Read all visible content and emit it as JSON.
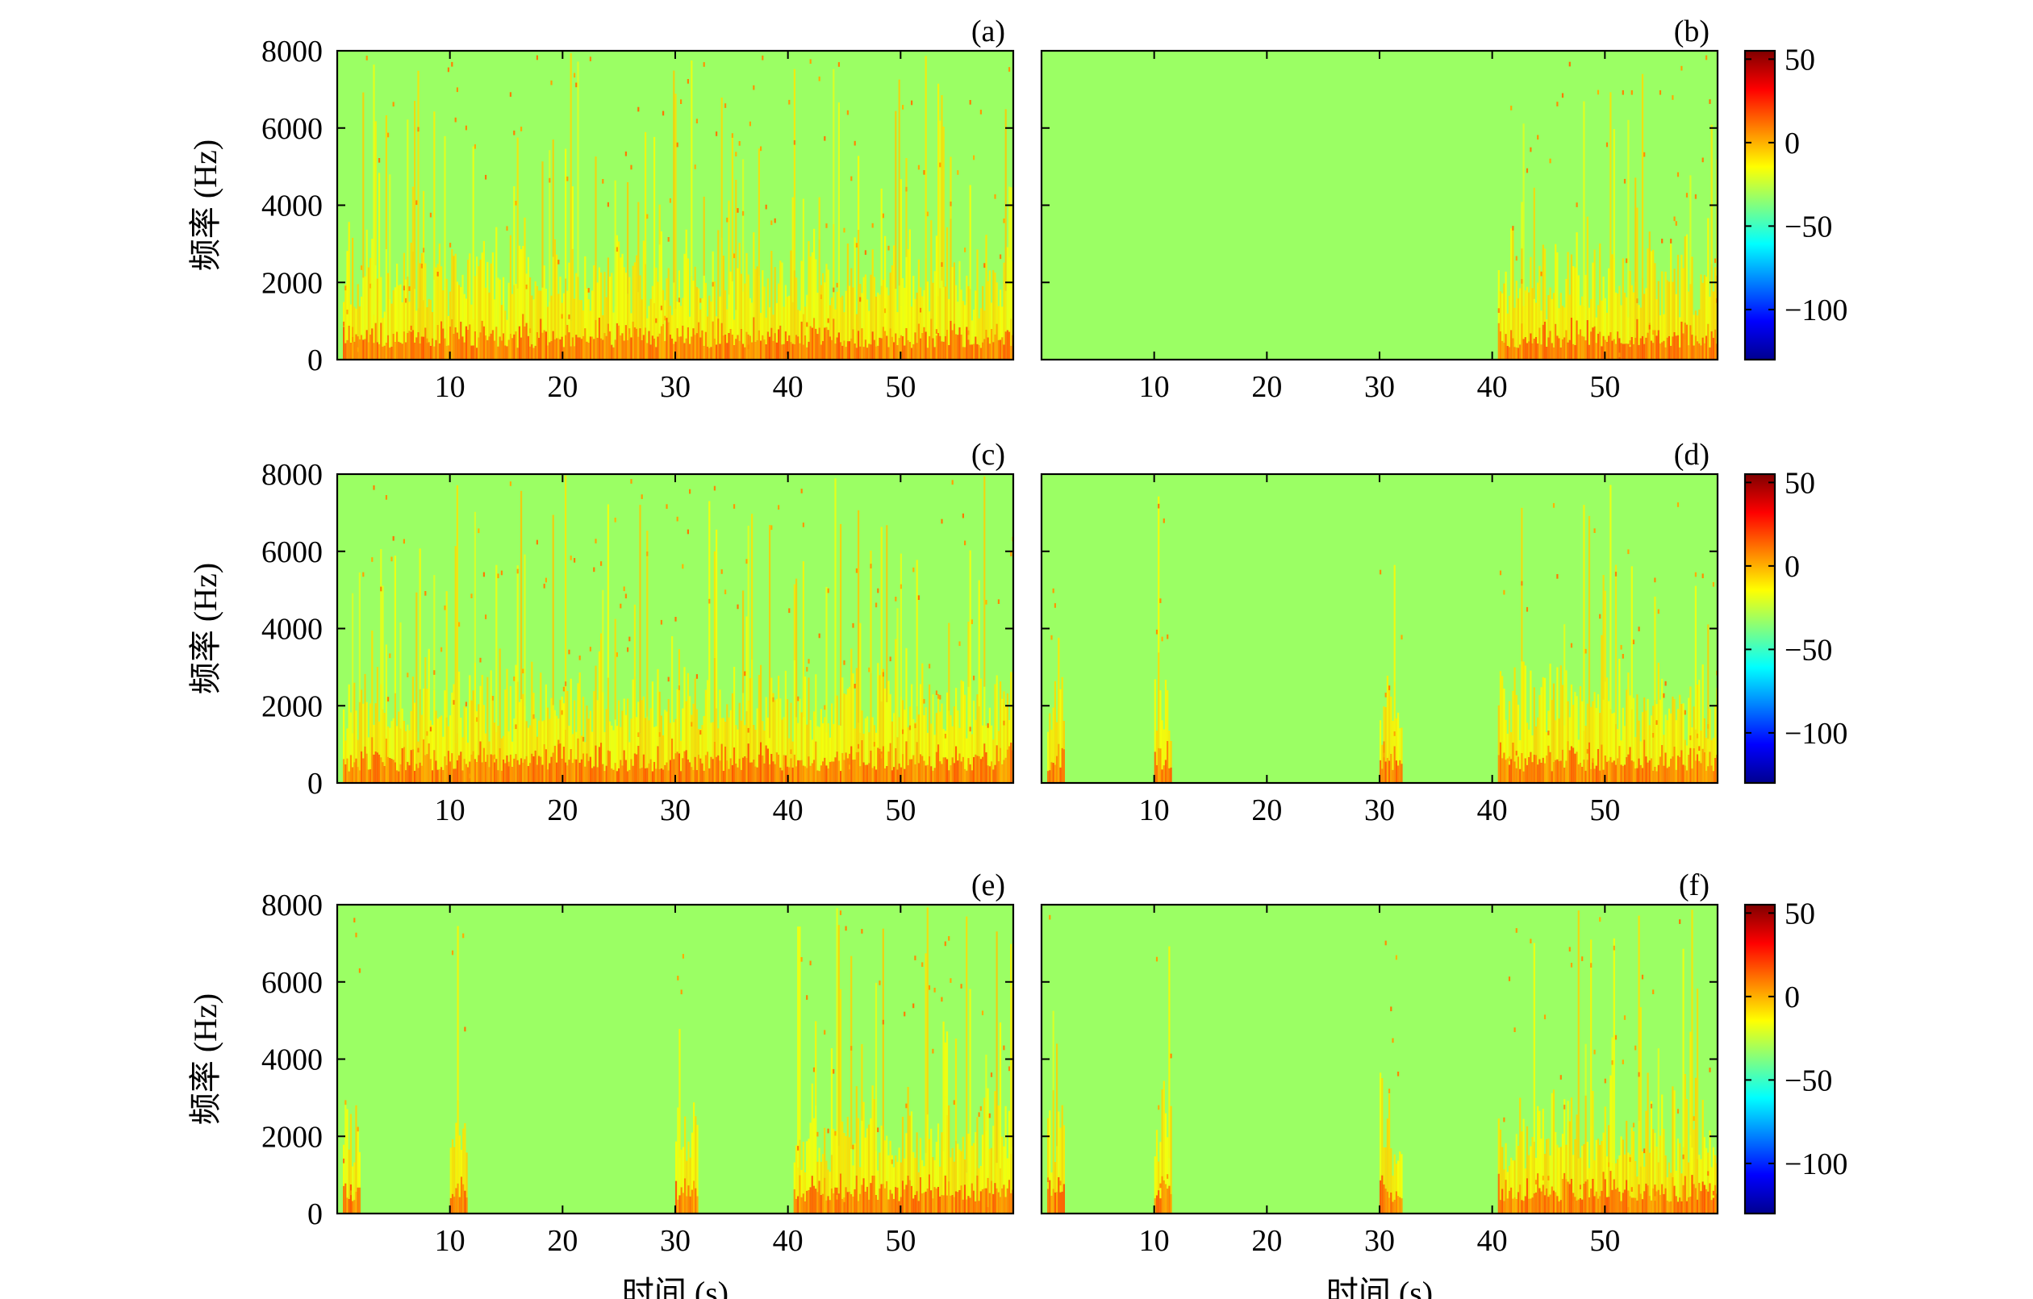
{
  "chart_data": {
    "type": "heatmap",
    "panels": [
      {
        "label": "(a)",
        "ylabel": "频率 (Hz)",
        "xlabel": "",
        "xticks": [
          "10",
          "20",
          "30",
          "40",
          "50"
        ],
        "yticks": [
          "0",
          "2000",
          "4000",
          "6000",
          "8000"
        ],
        "xlim": [
          0,
          60
        ],
        "ylim": [
          0,
          8000
        ],
        "active_intervals_s": [
          [
            0.5,
            60
          ]
        ],
        "quiet_level_db": -45
      },
      {
        "label": "(b)",
        "ylabel": "",
        "xlabel": "",
        "xticks": [
          "10",
          "20",
          "30",
          "40",
          "50"
        ],
        "yticks": [],
        "xlim": [
          0,
          60
        ],
        "ylim": [
          0,
          8000
        ],
        "active_intervals_s": [
          [
            40.5,
            60
          ]
        ],
        "quiet_level_db": -45
      },
      {
        "label": "(c)",
        "ylabel": "频率 (Hz)",
        "xlabel": "",
        "xticks": [
          "10",
          "20",
          "30",
          "40",
          "50"
        ],
        "yticks": [
          "0",
          "2000",
          "4000",
          "6000",
          "8000"
        ],
        "xlim": [
          0,
          60
        ],
        "ylim": [
          0,
          8000
        ],
        "active_intervals_s": [
          [
            0.5,
            60
          ]
        ],
        "quiet_level_db": -45
      },
      {
        "label": "(d)",
        "ylabel": "",
        "xlabel": "",
        "xticks": [
          "10",
          "20",
          "30",
          "40",
          "50"
        ],
        "yticks": [],
        "xlim": [
          0,
          60
        ],
        "ylim": [
          0,
          8000
        ],
        "active_intervals_s": [
          [
            0.5,
            2
          ],
          [
            10,
            11.5
          ],
          [
            30,
            32
          ],
          [
            40.5,
            60
          ]
        ],
        "quiet_level_db": -45
      },
      {
        "label": "(e)",
        "ylabel": "频率 (Hz)",
        "xlabel": "时间 (s)",
        "xticks": [
          "10",
          "20",
          "30",
          "40",
          "50"
        ],
        "yticks": [
          "0",
          "2000",
          "4000",
          "6000",
          "8000"
        ],
        "xlim": [
          0,
          60
        ],
        "ylim": [
          0,
          8000
        ],
        "active_intervals_s": [
          [
            0.5,
            2
          ],
          [
            10,
            11.5
          ],
          [
            30,
            32
          ],
          [
            40.5,
            60
          ]
        ],
        "quiet_level_db": -45
      },
      {
        "label": "(f)",
        "ylabel": "",
        "xlabel": "时间 (s)",
        "xticks": [
          "10",
          "20",
          "30",
          "40",
          "50"
        ],
        "yticks": [],
        "xlim": [
          0,
          60
        ],
        "ylim": [
          0,
          8000
        ],
        "active_intervals_s": [
          [
            0.5,
            2
          ],
          [
            10,
            11.5
          ],
          [
            30,
            32
          ],
          [
            40.5,
            60
          ]
        ],
        "quiet_level_db": -45
      }
    ],
    "colorbar": {
      "ticks": [
        "50",
        "0",
        "−50",
        "−100"
      ],
      "tick_values": [
        50,
        0,
        -50,
        -100
      ],
      "range": [
        -130,
        55
      ],
      "colormap": "jet",
      "colors": [
        "#00008f",
        "#0000ff",
        "#00ffff",
        "#80ff80",
        "#ffff00",
        "#ff8000",
        "#ff0000",
        "#800000"
      ]
    }
  }
}
